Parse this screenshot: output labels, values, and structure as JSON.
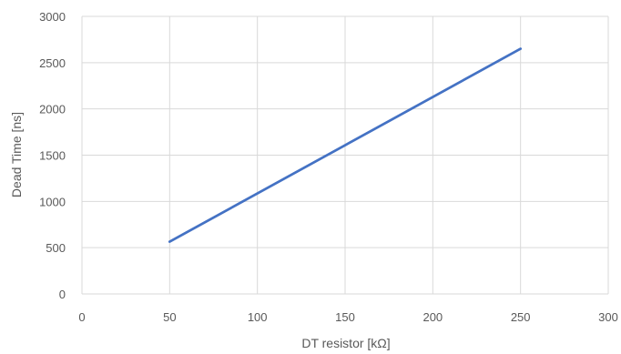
{
  "chart_data": {
    "type": "line",
    "title": "",
    "xlabel": "DT resistor [kΩ]",
    "ylabel": "Dead Time [ns]",
    "xlim": [
      0,
      300
    ],
    "ylim": [
      0,
      3000
    ],
    "x_ticks": [
      0,
      50,
      100,
      150,
      200,
      250,
      300
    ],
    "y_ticks": [
      0,
      500,
      1000,
      1500,
      2000,
      2500,
      3000
    ],
    "grid": true,
    "legend": "none",
    "series": [
      {
        "color": "#4472C4",
        "points": [
          {
            "x": 50,
            "y": 565
          },
          {
            "x": 250,
            "y": 2650
          }
        ]
      }
    ]
  }
}
